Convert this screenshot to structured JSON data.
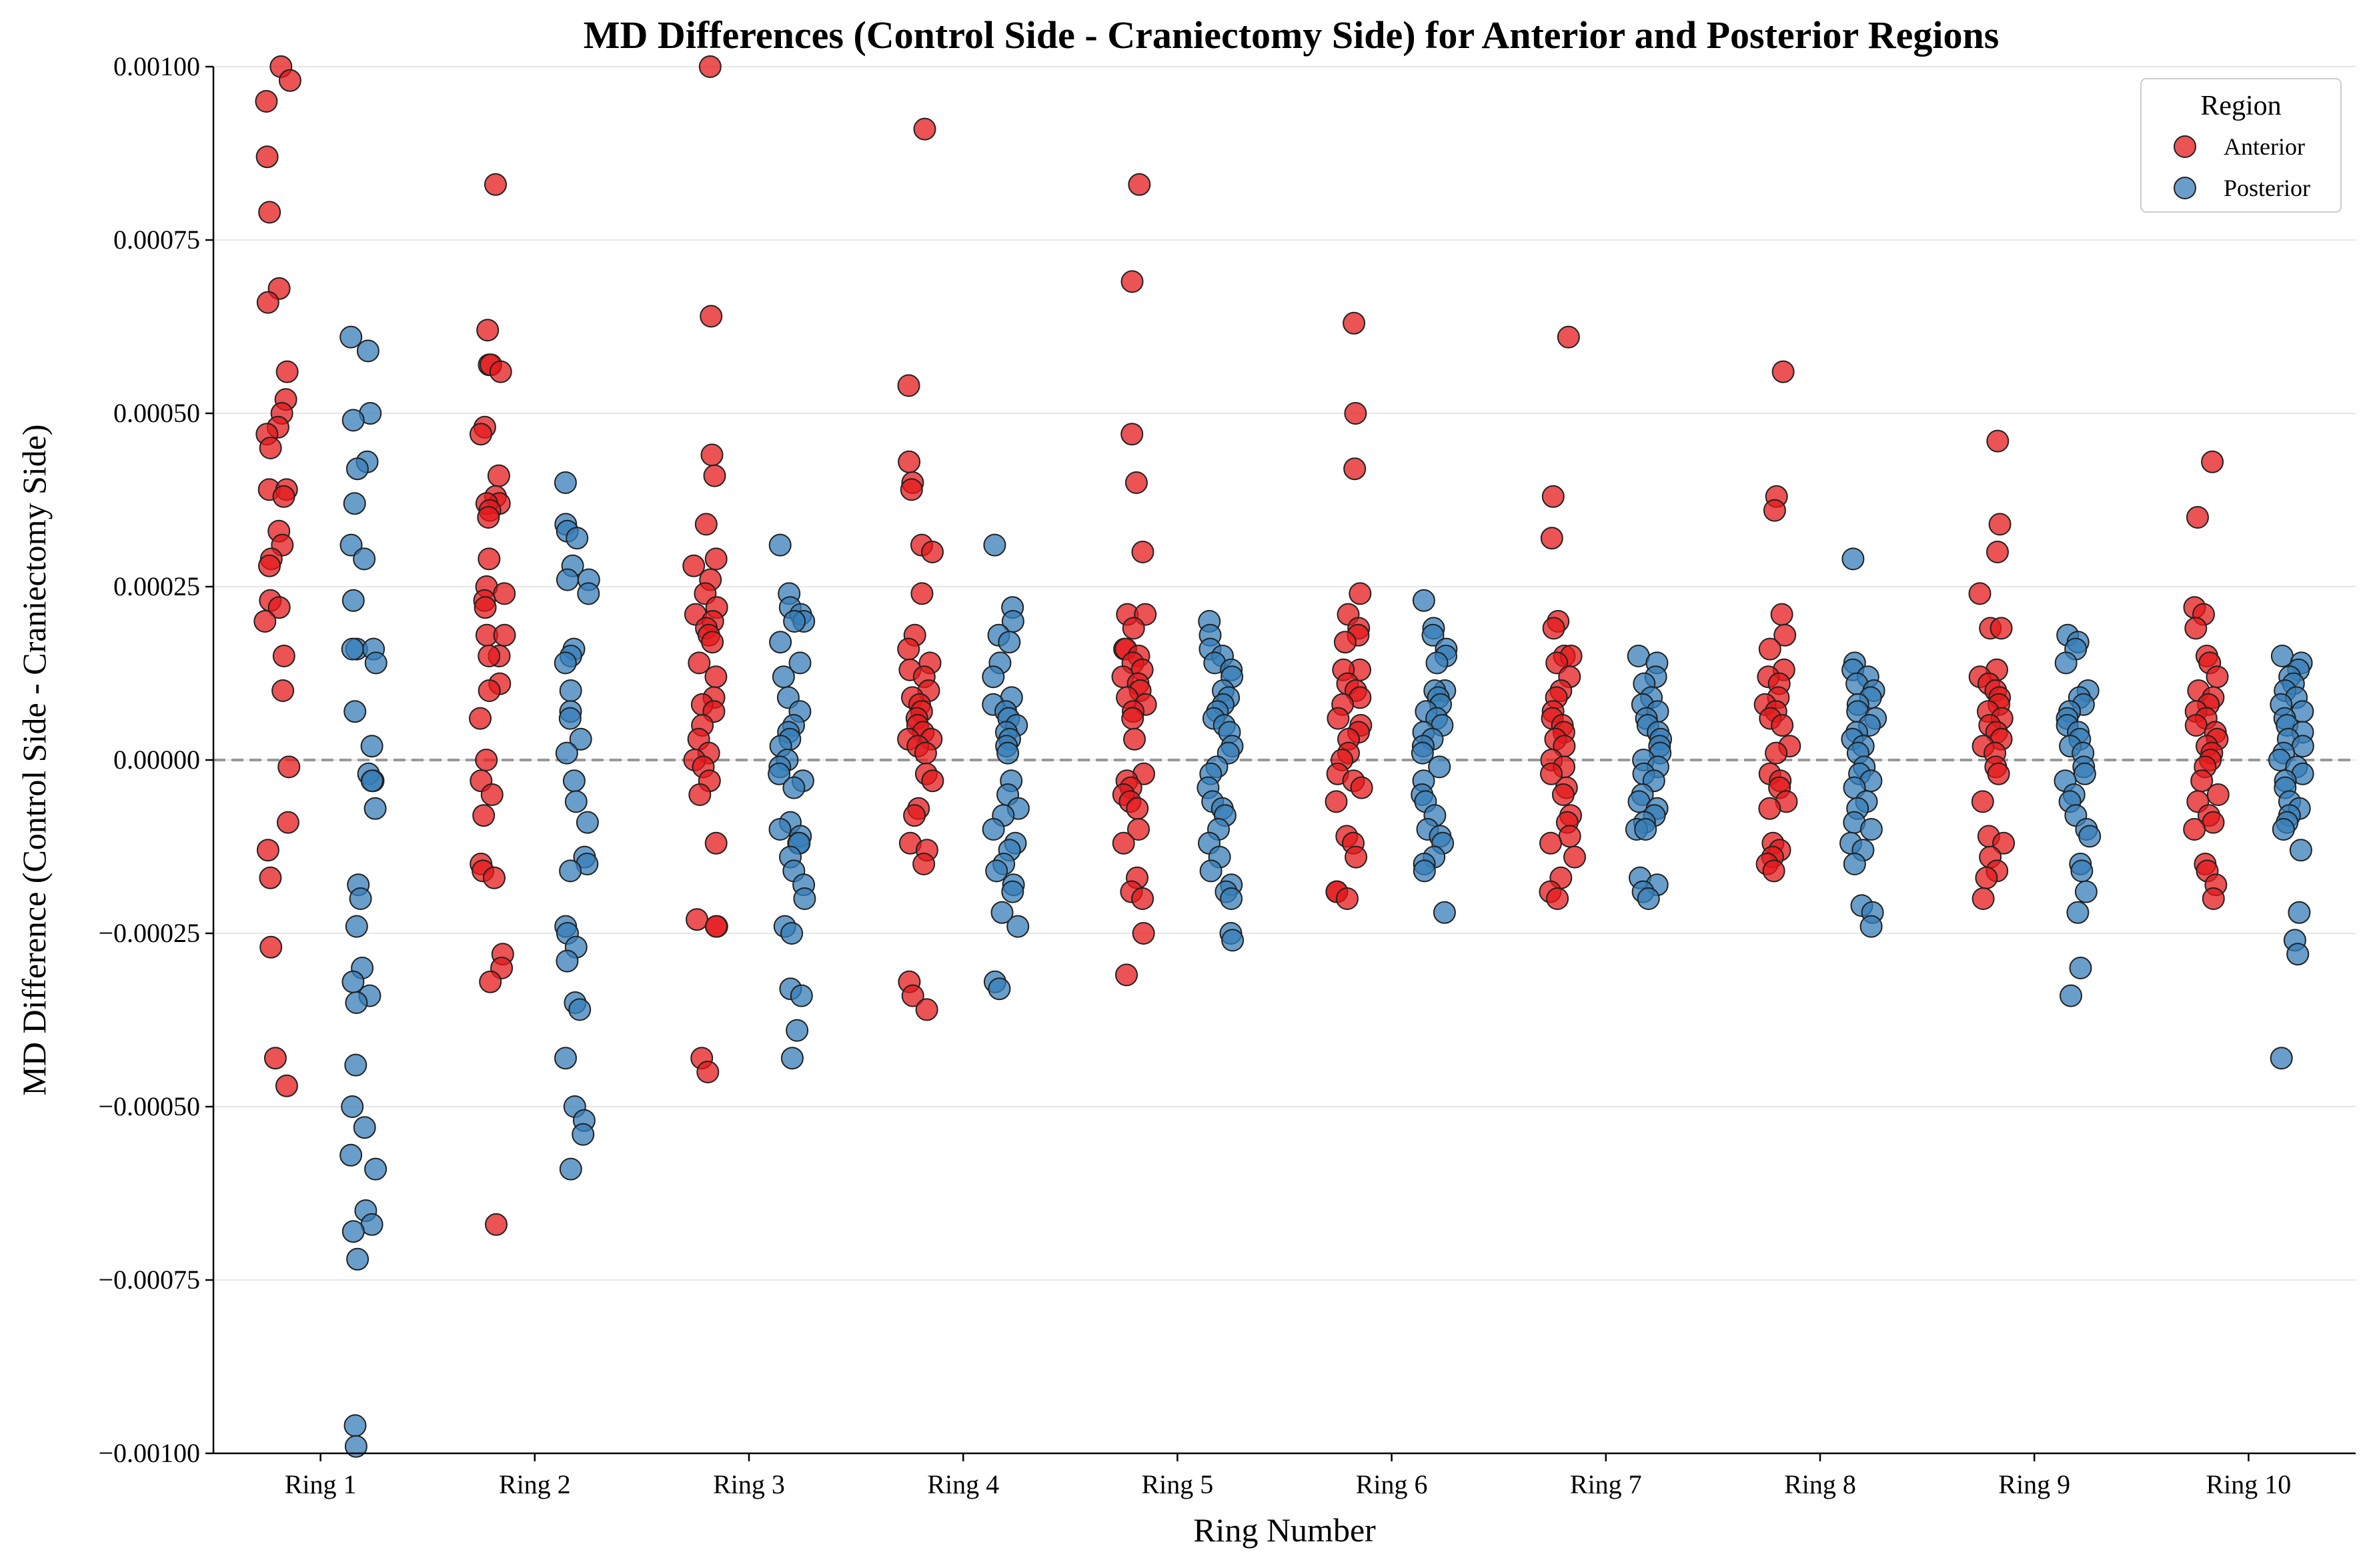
{
  "chart_data": {
    "type": "scatter",
    "title": "MD Differences (Control Side - Craniectomy Side) for Anterior and Posterior Regions",
    "xlabel": "Ring Number",
    "ylabel": "MD Difference (Control Side - Craniectomy Side)",
    "categories": [
      "Ring 1",
      "Ring 2",
      "Ring 3",
      "Ring 4",
      "Ring 5",
      "Ring 6",
      "Ring 7",
      "Ring 8",
      "Ring 9",
      "Ring 10"
    ],
    "ylim": [
      -0.001,
      0.001
    ],
    "yticks": [
      -0.001,
      -0.00075,
      -0.0005,
      -0.00025,
      0.0,
      0.00025,
      0.0005,
      0.00075,
      0.001
    ],
    "ytick_labels": [
      "−0.00100",
      "−0.00075",
      "−0.00050",
      "−0.00025",
      "0.00000",
      "0.00025",
      "0.00050",
      "0.00075",
      "0.00100"
    ],
    "grid": "horizontal",
    "zero_line": {
      "y": 0,
      "style": "dashed",
      "color": "#999999"
    },
    "legend": {
      "title": "Region",
      "position": "top-right"
    },
    "series": [
      {
        "name": "Anterior",
        "color": "#e41a1c",
        "values": [
          [
            0.001,
            0.00098,
            0.00095,
            0.00087,
            0.00079,
            0.00068,
            0.00066,
            0.00056,
            0.00052,
            0.0005,
            0.00048,
            0.00047,
            0.00045,
            0.00039,
            0.00039,
            0.00038,
            0.00033,
            0.00031,
            0.00029,
            0.00028,
            0.00023,
            0.00022,
            0.0002,
            0.00015,
            0.0001,
            -1e-05,
            -9e-05,
            -0.00013,
            -0.00017,
            -0.00027,
            -0.00043,
            -0.00047
          ],
          [
            0.00083,
            0.00062,
            0.00057,
            0.00057,
            0.00056,
            0.00048,
            0.00047,
            0.00041,
            0.00038,
            0.00037,
            0.00037,
            0.00036,
            0.00035,
            0.00029,
            0.00025,
            0.00024,
            0.00023,
            0.00022,
            0.00018,
            0.00018,
            0.00015,
            0.00015,
            0.00011,
            0.0001,
            6e-05,
            0.0,
            -3e-05,
            -5e-05,
            -8e-05,
            -0.00015,
            -0.00016,
            -0.00017,
            -0.00028,
            -0.0003,
            -0.00032,
            -0.00067
          ],
          [
            0.00101,
            0.00064,
            0.00044,
            0.00041,
            0.00034,
            0.00029,
            0.00028,
            0.00026,
            0.00024,
            0.00022,
            0.00021,
            0.0002,
            0.00019,
            0.00018,
            0.00017,
            0.00014,
            0.00012,
            9e-05,
            8e-05,
            7e-05,
            5e-05,
            3e-05,
            1e-05,
            0.0,
            -1e-05,
            -3e-05,
            -5e-05,
            -0.00012,
            -0.00023,
            -0.00024,
            -0.00024,
            -0.00043,
            -0.00045
          ],
          [
            0.00091,
            0.00054,
            0.00043,
            0.0004,
            0.00039,
            0.00031,
            0.0003,
            0.00024,
            0.00018,
            0.00016,
            0.00014,
            0.00013,
            0.00012,
            0.0001,
            9e-05,
            8e-05,
            7e-05,
            6e-05,
            5e-05,
            4e-05,
            3e-05,
            3e-05,
            2e-05,
            1e-05,
            -2e-05,
            -3e-05,
            -7e-05,
            -8e-05,
            -0.00012,
            -0.00013,
            -0.00015,
            -0.00032,
            -0.00034,
            -0.00036
          ],
          [
            0.00083,
            0.00069,
            0.00047,
            0.0004,
            0.0003,
            0.00021,
            0.00021,
            0.00019,
            0.00016,
            0.00016,
            0.00015,
            0.00014,
            0.00013,
            0.00012,
            0.00011,
            0.0001,
            9e-05,
            8e-05,
            7e-05,
            6e-05,
            3e-05,
            -2e-05,
            -3e-05,
            -4e-05,
            -5e-05,
            -6e-05,
            -7e-05,
            -0.0001,
            -0.00012,
            -0.00017,
            -0.00019,
            -0.0002,
            -0.00025,
            -0.00031
          ],
          [
            0.00063,
            0.0005,
            0.00042,
            0.00024,
            0.00021,
            0.00019,
            0.00018,
            0.00017,
            0.00013,
            0.00013,
            0.00011,
            0.0001,
            9e-05,
            8e-05,
            6e-05,
            5e-05,
            4e-05,
            3e-05,
            1e-05,
            0.0,
            -2e-05,
            -3e-05,
            -4e-05,
            -6e-05,
            -0.00011,
            -0.00012,
            -0.00014,
            -0.00019,
            -0.00019,
            -0.0002
          ],
          [
            0.00061,
            0.00038,
            0.00032,
            0.0002,
            0.00019,
            0.00015,
            0.00015,
            0.00014,
            0.00012,
            0.0001,
            9e-05,
            7e-05,
            6e-05,
            5e-05,
            4e-05,
            3e-05,
            2e-05,
            0.0,
            -1e-05,
            -2e-05,
            -4e-05,
            -5e-05,
            -8e-05,
            -9e-05,
            -0.00011,
            -0.00012,
            -0.00014,
            -0.00017,
            -0.00019,
            -0.0002
          ],
          [
            0.00056,
            0.00038,
            0.00036,
            0.00021,
            0.00018,
            0.00016,
            0.00013,
            0.00012,
            0.00011,
            9e-05,
            8e-05,
            7e-05,
            6e-05,
            5e-05,
            2e-05,
            1e-05,
            -2e-05,
            -3e-05,
            -4e-05,
            -6e-05,
            -7e-05,
            -0.00012,
            -0.00013,
            -0.00014,
            -0.00015,
            -0.00016
          ],
          [
            0.00046,
            0.00034,
            0.0003,
            0.00024,
            0.00019,
            0.00019,
            0.00013,
            0.00012,
            0.00011,
            0.0001,
            9e-05,
            8e-05,
            7e-05,
            6e-05,
            5e-05,
            4e-05,
            3e-05,
            2e-05,
            1e-05,
            -1e-05,
            -2e-05,
            -6e-05,
            -0.00011,
            -0.00012,
            -0.00014,
            -0.00016,
            -0.00017,
            -0.0002
          ],
          [
            0.00043,
            0.00035,
            0.00022,
            0.00021,
            0.00019,
            0.00015,
            0.00014,
            0.00012,
            0.0001,
            9e-05,
            8e-05,
            7e-05,
            6e-05,
            5e-05,
            4e-05,
            3e-05,
            2e-05,
            1e-05,
            0.0,
            -1e-05,
            -3e-05,
            -5e-05,
            -6e-05,
            -8e-05,
            -9e-05,
            -0.0001,
            -0.00015,
            -0.00016,
            -0.00018,
            -0.0002
          ]
        ]
      },
      {
        "name": "Posterior",
        "color": "#377eb8",
        "values": [
          [
            0.00061,
            0.00059,
            0.0005,
            0.00049,
            0.00043,
            0.00042,
            0.00037,
            0.00031,
            0.00029,
            0.00023,
            0.00016,
            0.00016,
            0.00016,
            0.00014,
            7e-05,
            2e-05,
            -2e-05,
            -3e-05,
            -3e-05,
            -7e-05,
            -0.00018,
            -0.0002,
            -0.00024,
            -0.0003,
            -0.00032,
            -0.00034,
            -0.00035,
            -0.00044,
            -0.0005,
            -0.00053,
            -0.00057,
            -0.00059,
            -0.00065,
            -0.00067,
            -0.00068,
            -0.00072,
            -0.00096,
            -0.00099
          ],
          [
            0.0004,
            0.00034,
            0.00033,
            0.00032,
            0.00028,
            0.00026,
            0.00026,
            0.00024,
            0.00016,
            0.00015,
            0.00014,
            0.0001,
            7e-05,
            6e-05,
            3e-05,
            1e-05,
            -3e-05,
            -6e-05,
            -9e-05,
            -0.00014,
            -0.00015,
            -0.00016,
            -0.00024,
            -0.00025,
            -0.00027,
            -0.00029,
            -0.00035,
            -0.00036,
            -0.00043,
            -0.0005,
            -0.00052,
            -0.00054,
            -0.00059
          ],
          [
            0.00031,
            0.00024,
            0.00022,
            0.00021,
            0.0002,
            0.0002,
            0.00017,
            0.00014,
            0.00012,
            9e-05,
            7e-05,
            5e-05,
            4e-05,
            3e-05,
            2e-05,
            0.0,
            -1e-05,
            -2e-05,
            -3e-05,
            -4e-05,
            -9e-05,
            -0.0001,
            -0.00011,
            -0.00012,
            -0.00012,
            -0.00014,
            -0.00016,
            -0.00018,
            -0.0002,
            -0.00024,
            -0.00025,
            -0.00033,
            -0.00034,
            -0.00039,
            -0.00043
          ],
          [
            0.00031,
            0.00022,
            0.0002,
            0.00018,
            0.00017,
            0.00014,
            0.00012,
            9e-05,
            8e-05,
            7e-05,
            6e-05,
            5e-05,
            4e-05,
            3e-05,
            2e-05,
            1e-05,
            -3e-05,
            -5e-05,
            -7e-05,
            -8e-05,
            -0.0001,
            -0.00012,
            -0.00013,
            -0.00015,
            -0.00016,
            -0.00018,
            -0.00019,
            -0.00022,
            -0.00024,
            -0.00032,
            -0.00033
          ],
          [
            0.0002,
            0.00018,
            0.00016,
            0.00015,
            0.00014,
            0.00013,
            0.00012,
            0.0001,
            9e-05,
            8e-05,
            7e-05,
            6e-05,
            5e-05,
            4e-05,
            2e-05,
            1e-05,
            -1e-05,
            -2e-05,
            -4e-05,
            -6e-05,
            -7e-05,
            -8e-05,
            -0.0001,
            -0.00012,
            -0.00014,
            -0.00016,
            -0.00018,
            -0.00019,
            -0.0002,
            -0.00025,
            -0.00026
          ],
          [
            0.00023,
            0.00019,
            0.00018,
            0.00016,
            0.00015,
            0.00014,
            0.0001,
            0.0001,
            9e-05,
            8e-05,
            7e-05,
            6e-05,
            5e-05,
            4e-05,
            3e-05,
            2e-05,
            1e-05,
            -1e-05,
            -3e-05,
            -5e-05,
            -6e-05,
            -8e-05,
            -0.0001,
            -0.00011,
            -0.00012,
            -0.00014,
            -0.00015,
            -0.00016,
            -0.00022
          ],
          [
            0.00015,
            0.00014,
            0.00012,
            0.00011,
            9e-05,
            8e-05,
            7e-05,
            6e-05,
            5e-05,
            4e-05,
            3e-05,
            2e-05,
            1e-05,
            0.0,
            -1e-05,
            -2e-05,
            -3e-05,
            -5e-05,
            -6e-05,
            -7e-05,
            -8e-05,
            -9e-05,
            -0.0001,
            -0.0001,
            -0.00017,
            -0.00018,
            -0.00019,
            -0.0002
          ],
          [
            0.00029,
            0.00014,
            0.00013,
            0.00012,
            0.00011,
            0.0001,
            9e-05,
            8e-05,
            7e-05,
            6e-05,
            5e-05,
            4e-05,
            3e-05,
            2e-05,
            1e-05,
            -1e-05,
            -2e-05,
            -3e-05,
            -4e-05,
            -6e-05,
            -7e-05,
            -9e-05,
            -0.0001,
            -0.00012,
            -0.00013,
            -0.00015,
            -0.00021,
            -0.00022,
            -0.00024
          ],
          [
            0.00018,
            0.00017,
            0.00016,
            0.00014,
            0.0001,
            9e-05,
            8e-05,
            7e-05,
            6e-05,
            5e-05,
            4e-05,
            3e-05,
            2e-05,
            1e-05,
            -1e-05,
            -2e-05,
            -3e-05,
            -5e-05,
            -6e-05,
            -8e-05,
            -0.0001,
            -0.00011,
            -0.00015,
            -0.00016,
            -0.00019,
            -0.00022,
            -0.0003,
            -0.00034
          ],
          [
            0.00015,
            0.00014,
            0.00013,
            0.00012,
            0.00011,
            0.0001,
            9e-05,
            8e-05,
            7e-05,
            6e-05,
            5e-05,
            4e-05,
            3e-05,
            2e-05,
            1e-05,
            0.0,
            -1e-05,
            -2e-05,
            -3e-05,
            -4e-05,
            -6e-05,
            -7e-05,
            -8e-05,
            -9e-05,
            -0.0001,
            -0.00013,
            -0.00022,
            -0.00026,
            -0.00028,
            -0.00043
          ]
        ]
      }
    ]
  }
}
